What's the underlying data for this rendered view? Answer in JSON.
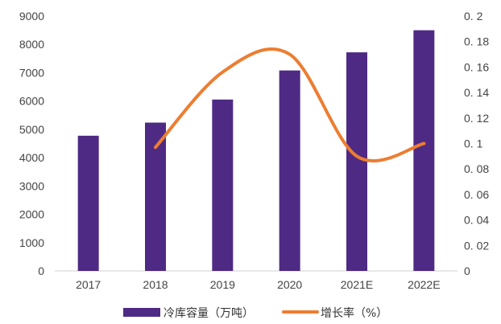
{
  "chart_data": {
    "type": "bar",
    "categories": [
      "2017",
      "2018",
      "2019",
      "2020",
      "2021E",
      "2022E"
    ],
    "series": [
      {
        "name": "冷库容量（万吨）",
        "type": "bar",
        "axis": "left",
        "color": "#4E2A84",
        "values": [
          4775,
          5238,
          6053,
          7080,
          7720,
          8500
        ]
      },
      {
        "name": "增长率（%）",
        "type": "line",
        "axis": "right",
        "color": "#ED7D31",
        "values": [
          null,
          0.097,
          0.156,
          0.17,
          0.09,
          0.1
        ]
      }
    ],
    "y_left": {
      "min": 0,
      "max": 9000,
      "ticks": [
        "0",
        "1000",
        "2000",
        "3000",
        "4000",
        "5000",
        "6000",
        "7000",
        "8000",
        "9000"
      ]
    },
    "y_right": {
      "min": 0,
      "max": 0.2,
      "ticks": [
        "0",
        "0. 02",
        "0. 04",
        "0. 06",
        "0. 08",
        "0. 1",
        "0. 12",
        "0. 14",
        "0. 16",
        "0. 18",
        "0. 2"
      ]
    },
    "grid": false,
    "legend_position": "bottom"
  }
}
